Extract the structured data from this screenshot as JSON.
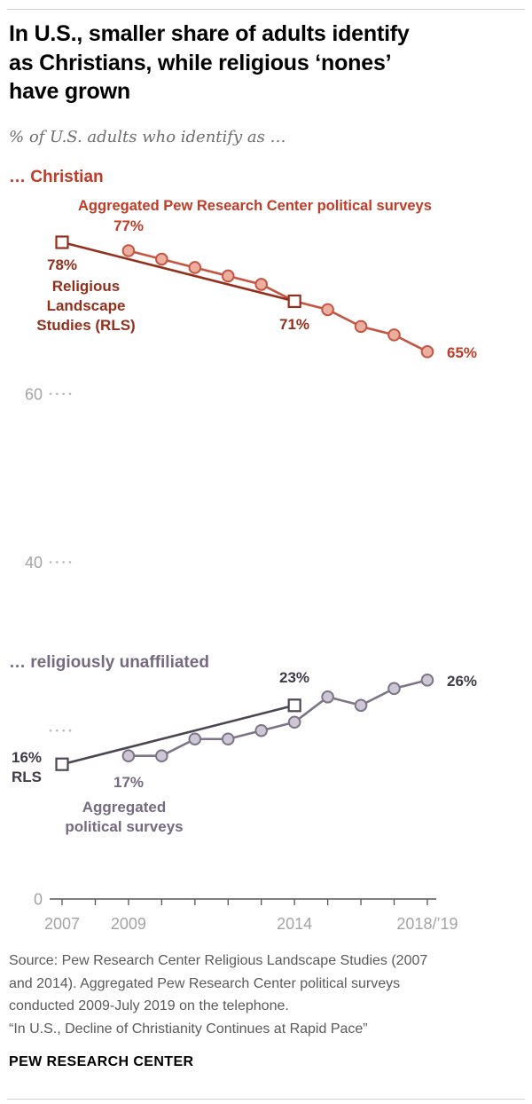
{
  "header": {
    "title": "In U.S., smaller share of adults identify\nas Christians, while religious ‘nones’\nhave grown",
    "subtitle": "% of U.S. adults who identify as …"
  },
  "palette": {
    "christian_bright": "#c23b27",
    "christian_dark": "#942f1c",
    "unaffiliated_medium": "#756a81",
    "unaffiliated_dark": "#413b48",
    "axis_gray": "#a4a4a4",
    "source_gray": "#5a5a5a"
  },
  "chart_labels": {
    "christian_section": "… Christian",
    "christian_agg_annotation": "Aggregated Pew Research Center political surveys",
    "christian_agg_start": "77%",
    "christian_rls_start": "78%",
    "christian_rls_name": "Religious\nLandscape\nStudies (RLS)",
    "christian_rls_end": "71%",
    "christian_agg_end": "65%",
    "unaffiliated_section": "… religiously unaffiliated",
    "unaffiliated_rls_end": "23%",
    "unaffiliated_agg_end": "26%",
    "unaffiliated_rls_start": "16%\nRLS",
    "unaffiliated_agg_start": "17%",
    "unaffiliated_agg_name": "Aggregated\npolitical surveys"
  },
  "chart_data": {
    "type": "line",
    "title": "In U.S., smaller share of adults identify as Christians, while religious ‘nones’ have grown",
    "subtitle": "% of U.S. adults who identify as …",
    "grid": "tick-stubs-only",
    "legend_position": "inline-annotations",
    "x_axis": {
      "min": 2007,
      "max": 2019,
      "tick_marks": [
        2007,
        2008,
        2009,
        2010,
        2011,
        2012,
        2013,
        2014,
        2015,
        2016,
        2017,
        2018
      ],
      "ticks": [
        {
          "year": 2007,
          "label": "2007"
        },
        {
          "year": 2009,
          "label": "2009"
        },
        {
          "year": 2014,
          "label": "2014"
        },
        {
          "year": 2018,
          "label": "2018/’19"
        }
      ]
    },
    "y_axis": {
      "min": 0,
      "max": 80,
      "gridlines": [
        {
          "value": 60,
          "label": "60"
        },
        {
          "value": 40,
          "label": "40"
        },
        {
          "value": 20,
          "label": ""
        }
      ],
      "baseline": {
        "value": 0,
        "label": "0"
      }
    },
    "series": [
      {
        "name": "Christian — Aggregated Pew Research Center political surveys",
        "group": "christian",
        "marker": "circle",
        "line_color": "#c65441",
        "marker_fill": "#eaaf9f",
        "x": [
          2009,
          2010,
          2011,
          2012,
          2013,
          2014,
          2015,
          2016,
          2017,
          2018
        ],
        "values": [
          77,
          76,
          75,
          74,
          73,
          71,
          70,
          68,
          67,
          65
        ]
      },
      {
        "name": "Christian — Religious Landscape Studies (RLS)",
        "group": "christian",
        "marker": "square",
        "line_color": "#942f1c",
        "marker_fill": "#ffffff",
        "x": [
          2007,
          2014
        ],
        "values": [
          78,
          71
        ]
      },
      {
        "name": "Religiously unaffiliated — Aggregated political surveys",
        "group": "unaffiliated",
        "marker": "circle",
        "line_color": "#7d7488",
        "marker_fill": "#cdc7d5",
        "x": [
          2009,
          2010,
          2011,
          2012,
          2013,
          2014,
          2015,
          2016,
          2017,
          2018
        ],
        "values": [
          17,
          17,
          19,
          19,
          20,
          21,
          24,
          23,
          25,
          26
        ]
      },
      {
        "name": "Religiously unaffiliated — Religious Landscape Studies (RLS)",
        "group": "unaffiliated",
        "marker": "square",
        "line_color": "#4c4653",
        "marker_fill": "#ffffff",
        "x": [
          2007,
          2014
        ],
        "values": [
          16,
          23
        ]
      }
    ]
  },
  "source": {
    "lines": [
      "Source: Pew Research Center Religious Landscape Studies (2007",
      "and 2014). Aggregated Pew Research Center political surveys",
      "conducted 2009-July 2019 on the telephone.",
      "“In U.S., Decline of Christianity Continues at Rapid Pace”"
    ]
  },
  "footer": {
    "brand": "PEW RESEARCH CENTER"
  }
}
